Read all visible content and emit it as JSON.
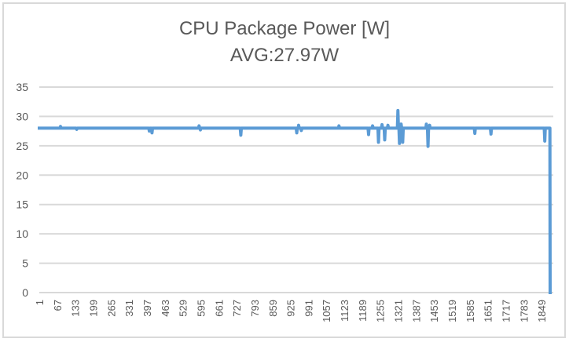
{
  "chart_data": {
    "type": "line",
    "title": "CPU Package Power [W]",
    "subtitle": "AVG:27.97W",
    "xlabel": "",
    "ylabel": "",
    "ylim": [
      0,
      35
    ],
    "yticks": [
      0,
      5,
      10,
      15,
      20,
      25,
      30,
      35
    ],
    "x_range": [
      1,
      1900
    ],
    "xtick_labels": [
      "1",
      "67",
      "133",
      "199",
      "265",
      "331",
      "397",
      "463",
      "529",
      "595",
      "661",
      "727",
      "793",
      "859",
      "925",
      "991",
      "1057",
      "1123",
      "1189",
      "1255",
      "1321",
      "1387",
      "1453",
      "1519",
      "1585",
      "1651",
      "1717",
      "1783",
      "1849"
    ],
    "grid": true,
    "legend": "none",
    "series": [
      {
        "name": "CPU Package Power [W]",
        "color": "#5b9bd5",
        "baseline": 28.0,
        "events": [
          {
            "x": 80,
            "y": 28.3
          },
          {
            "x": 140,
            "y": 27.8
          },
          {
            "x": 410,
            "y": 27.5
          },
          {
            "x": 420,
            "y": 27.2
          },
          {
            "x": 595,
            "y": 28.4
          },
          {
            "x": 600,
            "y": 27.7
          },
          {
            "x": 750,
            "y": 26.8
          },
          {
            "x": 958,
            "y": 27.2
          },
          {
            "x": 965,
            "y": 28.5
          },
          {
            "x": 975,
            "y": 27.6
          },
          {
            "x": 1115,
            "y": 28.4
          },
          {
            "x": 1225,
            "y": 26.9
          },
          {
            "x": 1240,
            "y": 28.4
          },
          {
            "x": 1262,
            "y": 25.6
          },
          {
            "x": 1275,
            "y": 28.6
          },
          {
            "x": 1285,
            "y": 26.0
          },
          {
            "x": 1297,
            "y": 28.5
          },
          {
            "x": 1334,
            "y": 31.0
          },
          {
            "x": 1340,
            "y": 25.4
          },
          {
            "x": 1346,
            "y": 28.7
          },
          {
            "x": 1352,
            "y": 25.6
          },
          {
            "x": 1440,
            "y": 28.7
          },
          {
            "x": 1446,
            "y": 24.9
          },
          {
            "x": 1452,
            "y": 28.5
          },
          {
            "x": 1620,
            "y": 27.1
          },
          {
            "x": 1680,
            "y": 27.0
          },
          {
            "x": 1880,
            "y": 25.8
          },
          {
            "x": 1899,
            "y": 28.0
          },
          {
            "x": 1900,
            "y": 0.0
          }
        ]
      }
    ]
  }
}
